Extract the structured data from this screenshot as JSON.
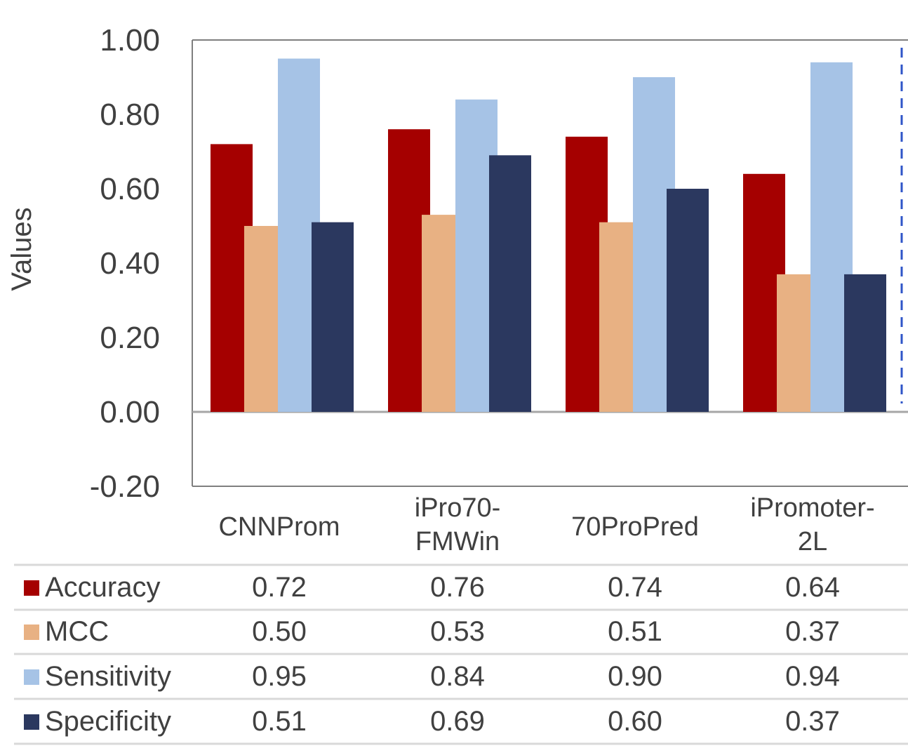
{
  "chart_data": {
    "type": "bar",
    "title": "",
    "xlabel": "",
    "ylabel": "Values",
    "ylim": [
      -0.2,
      1.0
    ],
    "yticks": [
      "1.00",
      "0.80",
      "0.60",
      "0.40",
      "0.20",
      "0.00",
      "-0.20"
    ],
    "categories": [
      [
        "CNNProm"
      ],
      [
        "iPro70-",
        "FMWin"
      ],
      [
        "70ProPred"
      ],
      [
        "iPromoter-",
        "2L"
      ]
    ],
    "series": [
      {
        "name": "Accuracy",
        "color": "#a50000",
        "values": [
          0.72,
          0.76,
          0.74,
          0.64
        ],
        "labels": [
          "0.72",
          "0.76",
          "0.74",
          "0.64"
        ]
      },
      {
        "name": "MCC",
        "color": "#e8b183",
        "values": [
          0.5,
          0.53,
          0.51,
          0.37
        ],
        "labels": [
          "0.50",
          "0.53",
          "0.51",
          "0.37"
        ]
      },
      {
        "name": "Sensitivity",
        "color": "#a6c3e6",
        "values": [
          0.95,
          0.84,
          0.9,
          0.94
        ],
        "labels": [
          "0.95",
          "0.84",
          "0.90",
          "0.94"
        ]
      },
      {
        "name": "Specificity",
        "color": "#2b385f",
        "values": [
          0.51,
          0.69,
          0.6,
          0.37
        ],
        "labels": [
          "0.51",
          "0.69",
          "0.60",
          "0.37"
        ]
      }
    ],
    "grid": false,
    "legend": "data-table-below",
    "annotation": {
      "type": "vertical-dashed-line",
      "color": "#2f55c8",
      "position": "right-edge"
    }
  }
}
